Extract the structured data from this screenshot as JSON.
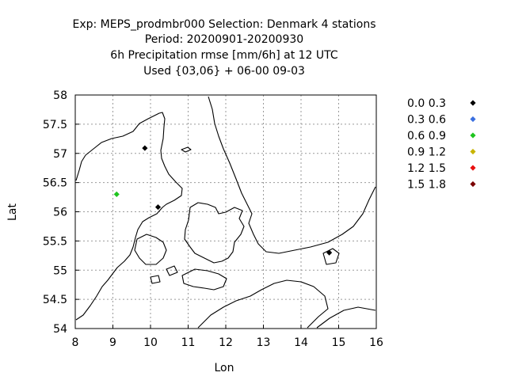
{
  "title_lines": [
    "Exp: MEPS_prodmbr000   Selection: Denmark      4 stations",
    "Period: 20200901-20200930",
    "6h Precipitation rmse [mm/6h] at  12 UTC",
    "Used {03,06} + 06-00 09-03"
  ],
  "axes": {
    "xlabel": "Lon",
    "ylabel": "Lat",
    "xlim": [
      8,
      16
    ],
    "ylim": [
      54,
      58
    ],
    "xticks": [
      "8",
      "9",
      "10",
      "11",
      "12",
      "13",
      "14",
      "15",
      "16"
    ],
    "yticks": [
      "54",
      "54.5",
      "55",
      "55.5",
      "56",
      "56.5",
      "57",
      "57.5",
      "58"
    ],
    "grid": true
  },
  "legend": {
    "placement": "right",
    "entries": [
      {
        "label": "0.0 0.3",
        "color": "#000000"
      },
      {
        "label": "0.3 0.6",
        "color": "#3a6fe0"
      },
      {
        "label": "0.6 0.9",
        "color": "#1fc41f"
      },
      {
        "label": "0.9 1.2",
        "color": "#c8b400"
      },
      {
        "label": "1.2 1.5",
        "color": "#e81010"
      },
      {
        "label": "1.5 1.8",
        "color": "#7a0000"
      }
    ]
  },
  "stations": [
    {
      "lon": 9.85,
      "lat": 57.09,
      "color": "#000000"
    },
    {
      "lon": 9.1,
      "lat": 56.3,
      "color": "#1fc41f"
    },
    {
      "lon": 10.2,
      "lat": 56.08,
      "color": "#000000"
    },
    {
      "lon": 14.75,
      "lat": 55.3,
      "color": "#000000"
    }
  ],
  "chart_data": {
    "type": "scatter",
    "title": "Exp: MEPS_prodmbr000   Selection: Denmark      4 stations",
    "xlabel": "Lon",
    "ylabel": "Lat",
    "xlim": [
      8,
      16
    ],
    "ylim": [
      54,
      58
    ],
    "series": [
      {
        "name": "0.0 0.3",
        "x": [
          9.85,
          10.2,
          14.75
        ],
        "y": [
          57.09,
          56.08,
          55.3
        ]
      },
      {
        "name": "0.6 0.9",
        "x": [
          9.1
        ],
        "y": [
          56.3
        ]
      }
    ]
  }
}
